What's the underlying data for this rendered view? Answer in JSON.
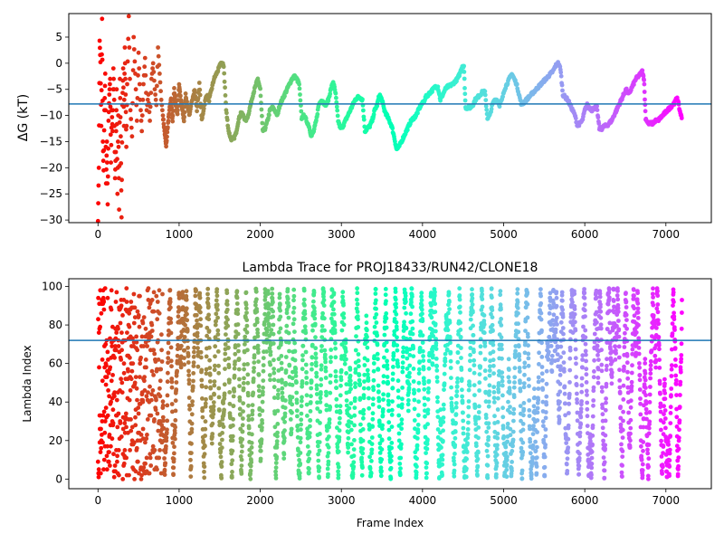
{
  "chart_data": [
    {
      "type": "scatter",
      "title": "",
      "xlabel": "",
      "ylabel": "ΔG (kT)",
      "xlim": [
        -360,
        7560
      ],
      "ylim": [
        -30.5,
        9.5
      ],
      "xticks": [
        0,
        1000,
        2000,
        3000,
        4000,
        5000,
        6000,
        7000
      ],
      "yticks": [
        -30,
        -25,
        -20,
        -15,
        -10,
        -5,
        0,
        5
      ],
      "hline": -7.8,
      "hline_color": "#1f77b4",
      "colormap": "rainbow (red at frame 0 to violet at last frame)",
      "n_frames": 7200,
      "points": [
        [
          0,
          -30.2
        ],
        [
          10,
          -20
        ],
        [
          20,
          4.3
        ],
        [
          30,
          0.2
        ],
        [
          40,
          -12
        ],
        [
          50,
          8.5
        ],
        [
          60,
          -15
        ],
        [
          70,
          -20.5
        ],
        [
          80,
          -9
        ],
        [
          90,
          -2
        ],
        [
          100,
          -23
        ],
        [
          110,
          -15
        ],
        [
          120,
          -27
        ],
        [
          130,
          -11
        ],
        [
          140,
          -6
        ],
        [
          150,
          -3
        ],
        [
          160,
          -19
        ],
        [
          170,
          -9
        ],
        [
          180,
          -13
        ],
        [
          190,
          -1
        ],
        [
          200,
          -7
        ],
        [
          210,
          -22
        ],
        [
          220,
          -17
        ],
        [
          230,
          -5
        ],
        [
          240,
          -25
        ],
        [
          250,
          -10
        ],
        [
          260,
          -28
        ],
        [
          270,
          -3
        ],
        [
          280,
          -14
        ],
        [
          290,
          -29.5
        ],
        [
          300,
          -8
        ],
        [
          310,
          -1
        ],
        [
          320,
          -12
        ],
        [
          330,
          3
        ],
        [
          340,
          -6
        ],
        [
          350,
          -16
        ],
        [
          360,
          -4
        ],
        [
          380,
          9
        ],
        [
          400,
          -9
        ],
        [
          420,
          -14
        ],
        [
          440,
          5
        ],
        [
          460,
          -2
        ],
        [
          480,
          -11
        ],
        [
          500,
          2
        ],
        [
          520,
          -7
        ],
        [
          540,
          -13
        ],
        [
          560,
          -4
        ],
        [
          580,
          1
        ],
        [
          600,
          -9
        ],
        [
          620,
          -6
        ],
        [
          640,
          -11
        ],
        [
          660,
          -3
        ],
        [
          680,
          0
        ],
        [
          700,
          -5
        ],
        [
          720,
          -8
        ],
        [
          740,
          3
        ],
        [
          760,
          -2
        ],
        [
          780,
          -7
        ],
        [
          800,
          -10
        ],
        [
          820,
          -13
        ],
        [
          840,
          -16
        ],
        [
          860,
          -12
        ],
        [
          880,
          -9
        ],
        [
          900,
          -7
        ],
        [
          920,
          -11
        ],
        [
          940,
          -5
        ],
        [
          960,
          -8
        ],
        [
          980,
          -10
        ],
        [
          1000,
          -4
        ],
        [
          1020,
          -7
        ],
        [
          1040,
          -9
        ],
        [
          1060,
          -11
        ],
        [
          1080,
          -6
        ],
        [
          1100,
          -8
        ],
        [
          1130,
          -10
        ],
        [
          1160,
          -7
        ],
        [
          1190,
          -5
        ],
        [
          1220,
          -9
        ],
        [
          1250,
          -4
        ],
        [
          1280,
          -11
        ],
        [
          1310,
          -8
        ],
        [
          1340,
          -6
        ],
        [
          1370,
          -7
        ],
        [
          1400,
          -5
        ],
        [
          1430,
          -3
        ],
        [
          1460,
          -2
        ],
        [
          1490,
          -1
        ],
        [
          1520,
          0.2
        ],
        [
          1550,
          -0.5
        ],
        [
          1580,
          -9
        ],
        [
          1610,
          -13
        ],
        [
          1640,
          -14.5
        ],
        [
          1670,
          -14.5
        ],
        [
          1700,
          -13.5
        ],
        [
          1730,
          -11
        ],
        [
          1760,
          -9.5
        ],
        [
          1790,
          -10
        ],
        [
          1820,
          -11
        ],
        [
          1850,
          -10
        ],
        [
          1880,
          -8
        ],
        [
          1910,
          -6
        ],
        [
          1940,
          -4.5
        ],
        [
          1970,
          -3
        ],
        [
          2000,
          -5
        ],
        [
          2030,
          -13
        ],
        [
          2060,
          -12.5
        ],
        [
          2090,
          -11
        ],
        [
          2120,
          -9
        ],
        [
          2150,
          -8.5
        ],
        [
          2180,
          -9
        ],
        [
          2210,
          -10
        ],
        [
          2240,
          -8
        ],
        [
          2270,
          -7
        ],
        [
          2300,
          -6
        ],
        [
          2330,
          -5
        ],
        [
          2360,
          -4
        ],
        [
          2390,
          -3
        ],
        [
          2420,
          -2.5
        ],
        [
          2450,
          -3
        ],
        [
          2480,
          -4
        ],
        [
          2510,
          -10.5
        ],
        [
          2540,
          -10
        ],
        [
          2570,
          -11
        ],
        [
          2600,
          -12
        ],
        [
          2630,
          -14
        ],
        [
          2660,
          -13
        ],
        [
          2690,
          -11
        ],
        [
          2720,
          -8
        ],
        [
          2750,
          -7
        ],
        [
          2780,
          -7.5
        ],
        [
          2810,
          -8
        ],
        [
          2840,
          -7
        ],
        [
          2870,
          -5
        ],
        [
          2900,
          -3.5
        ],
        [
          2930,
          -6
        ],
        [
          2960,
          -11
        ],
        [
          2990,
          -12.5
        ],
        [
          3020,
          -12
        ],
        [
          3050,
          -11
        ],
        [
          3080,
          -10
        ],
        [
          3110,
          -9
        ],
        [
          3140,
          -8
        ],
        [
          3170,
          -7
        ],
        [
          3200,
          -6.5
        ],
        [
          3230,
          -6.5
        ],
        [
          3260,
          -7
        ],
        [
          3290,
          -13
        ],
        [
          3320,
          -12.5
        ],
        [
          3350,
          -12
        ],
        [
          3380,
          -11
        ],
        [
          3410,
          -9
        ],
        [
          3440,
          -8
        ],
        [
          3470,
          -6
        ],
        [
          3500,
          -7
        ],
        [
          3530,
          -9
        ],
        [
          3560,
          -10
        ],
        [
          3590,
          -11
        ],
        [
          3620,
          -12
        ],
        [
          3650,
          -14
        ],
        [
          3680,
          -16.5
        ],
        [
          3710,
          -16
        ],
        [
          3740,
          -15
        ],
        [
          3770,
          -14
        ],
        [
          3800,
          -13
        ],
        [
          3830,
          -12
        ],
        [
          3860,
          -11
        ],
        [
          3890,
          -10.5
        ],
        [
          3920,
          -10
        ],
        [
          3950,
          -9
        ],
        [
          3980,
          -8
        ],
        [
          4010,
          -7.5
        ],
        [
          4040,
          -6.5
        ],
        [
          4070,
          -6
        ],
        [
          4100,
          -5.5
        ],
        [
          4130,
          -5
        ],
        [
          4160,
          -4.5
        ],
        [
          4190,
          -4.5
        ],
        [
          4220,
          -7
        ],
        [
          4250,
          -6
        ],
        [
          4280,
          -5
        ],
        [
          4310,
          -4.5
        ],
        [
          4340,
          -4.3
        ],
        [
          4370,
          -4
        ],
        [
          4400,
          -3.5
        ],
        [
          4430,
          -3
        ],
        [
          4460,
          -2
        ],
        [
          4490,
          -0.5
        ],
        [
          4510,
          -0.5
        ],
        [
          4530,
          -8.5
        ],
        [
          4560,
          -8.5
        ],
        [
          4590,
          -8.5
        ],
        [
          4620,
          -8
        ],
        [
          4650,
          -7
        ],
        [
          4680,
          -6.5
        ],
        [
          4710,
          -6
        ],
        [
          4740,
          -5.5
        ],
        [
          4770,
          -5.5
        ],
        [
          4800,
          -10.5
        ],
        [
          4830,
          -10
        ],
        [
          4860,
          -8
        ],
        [
          4890,
          -7
        ],
        [
          4920,
          -7
        ],
        [
          4950,
          -8
        ],
        [
          4980,
          -7
        ],
        [
          5010,
          -5
        ],
        [
          5040,
          -4
        ],
        [
          5070,
          -3
        ],
        [
          5100,
          -2
        ],
        [
          5130,
          -3
        ],
        [
          5160,
          -4
        ],
        [
          5190,
          -6
        ],
        [
          5220,
          -8
        ],
        [
          5250,
          -7.5
        ],
        [
          5280,
          -7
        ],
        [
          5310,
          -6.5
        ],
        [
          5340,
          -6
        ],
        [
          5370,
          -5.5
        ],
        [
          5400,
          -5
        ],
        [
          5430,
          -4.5
        ],
        [
          5460,
          -4
        ],
        [
          5490,
          -3.5
        ],
        [
          5520,
          -3
        ],
        [
          5550,
          -2.5
        ],
        [
          5580,
          -2
        ],
        [
          5610,
          -1.5
        ],
        [
          5640,
          -0.5
        ],
        [
          5670,
          0
        ],
        [
          5700,
          -1
        ],
        [
          5730,
          -6
        ],
        [
          5760,
          -6.5
        ],
        [
          5790,
          -7
        ],
        [
          5820,
          -8
        ],
        [
          5850,
          -9
        ],
        [
          5880,
          -10
        ],
        [
          5910,
          -12
        ],
        [
          5940,
          -11.5
        ],
        [
          5970,
          -11
        ],
        [
          6000,
          -9
        ],
        [
          6030,
          -8
        ],
        [
          6060,
          -8.5
        ],
        [
          6090,
          -9
        ],
        [
          6120,
          -8.5
        ],
        [
          6150,
          -8.5
        ],
        [
          6180,
          -12.5
        ],
        [
          6210,
          -12.5
        ],
        [
          6240,
          -12
        ],
        [
          6270,
          -12
        ],
        [
          6300,
          -11.5
        ],
        [
          6330,
          -11
        ],
        [
          6360,
          -10
        ],
        [
          6390,
          -9
        ],
        [
          6420,
          -8
        ],
        [
          6450,
          -7
        ],
        [
          6480,
          -6
        ],
        [
          6510,
          -5
        ],
        [
          6540,
          -6
        ],
        [
          6570,
          -5
        ],
        [
          6600,
          -4
        ],
        [
          6630,
          -3
        ],
        [
          6660,
          -2.5
        ],
        [
          6690,
          -2
        ],
        [
          6710,
          -1.5
        ],
        [
          6730,
          -3
        ],
        [
          6750,
          -10.5
        ],
        [
          6780,
          -11.5
        ],
        [
          6810,
          -11.5
        ],
        [
          6840,
          -11.5
        ],
        [
          6870,
          -11
        ],
        [
          6900,
          -11
        ],
        [
          6930,
          -10.5
        ],
        [
          6960,
          -10
        ],
        [
          6990,
          -9.5
        ],
        [
          7020,
          -9
        ],
        [
          7050,
          -8.5
        ],
        [
          7080,
          -8
        ],
        [
          7110,
          -7.5
        ],
        [
          7140,
          -6.5
        ],
        [
          7170,
          -9
        ],
        [
          7195,
          -10.5
        ]
      ]
    },
    {
      "type": "scatter",
      "title": "Lambda Trace for PROJ18433/RUN42/CLONE18",
      "xlabel": "Frame Index",
      "ylabel": "Lambda Index",
      "xlim": [
        -360,
        7560
      ],
      "ylim": [
        -5,
        104
      ],
      "xticks": [
        0,
        1000,
        2000,
        3000,
        4000,
        5000,
        6000,
        7000
      ],
      "yticks": [
        0,
        20,
        40,
        60,
        80,
        100
      ],
      "hline": 72,
      "hline_color": "#1f77b4",
      "colormap": "rainbow (red at frame 0 to violet at last frame)",
      "n_frames": 7200,
      "value_range": [
        0,
        99
      ]
    }
  ]
}
